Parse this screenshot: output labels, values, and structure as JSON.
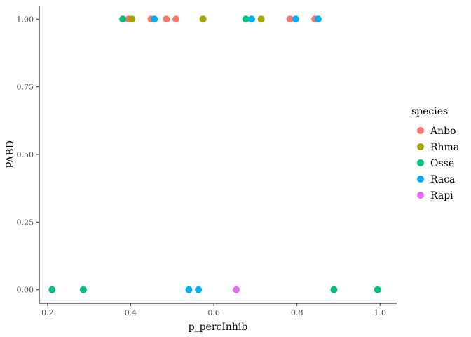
{
  "chart_data": {
    "type": "scatter",
    "xlabel": "p_percInhib",
    "ylabel": "PABD",
    "xlim": [
      0.18,
      1.04
    ],
    "ylim": [
      -0.05,
      1.05
    ],
    "x_ticks": [
      0.2,
      0.4,
      0.6,
      0.8,
      1.0
    ],
    "x_tick_labels": [
      "0.2",
      "0.4",
      "0.6",
      "0.8",
      "1.0"
    ],
    "y_ticks": [
      0.0,
      0.25,
      0.5,
      0.75,
      1.0
    ],
    "y_tick_labels": [
      "0.00",
      "0.25",
      "0.50",
      "0.75",
      "1.00"
    ],
    "grid": false,
    "legend_position": "right",
    "legend_title": "species",
    "series": [
      {
        "name": "Anbo",
        "color": "#F8766D",
        "points": [
          [
            0.395,
            1.0
          ],
          [
            0.449,
            1.0
          ],
          [
            0.486,
            1.0
          ],
          [
            0.509,
            1.0
          ],
          [
            0.783,
            1.0
          ],
          [
            0.843,
            1.0
          ]
        ]
      },
      {
        "name": "Rhma",
        "color": "#A3A500",
        "points": [
          [
            0.403,
            1.0
          ],
          [
            0.574,
            1.0
          ],
          [
            0.714,
            1.0
          ]
        ]
      },
      {
        "name": "Osse",
        "color": "#00BF7D",
        "points": [
          [
            0.381,
            1.0
          ],
          [
            0.677,
            1.0
          ],
          [
            0.211,
            0.0
          ],
          [
            0.286,
            0.0
          ],
          [
            0.889,
            0.0
          ],
          [
            0.994,
            0.0
          ]
        ]
      },
      {
        "name": "Raca",
        "color": "#00B0F6",
        "points": [
          [
            0.457,
            1.0
          ],
          [
            0.691,
            1.0
          ],
          [
            0.797,
            1.0
          ],
          [
            0.851,
            1.0
          ],
          [
            0.54,
            0.0
          ],
          [
            0.563,
            0.0
          ]
        ]
      },
      {
        "name": "Rapi",
        "color": "#E76BF3",
        "points": [
          [
            0.654,
            0.0
          ]
        ]
      }
    ]
  }
}
